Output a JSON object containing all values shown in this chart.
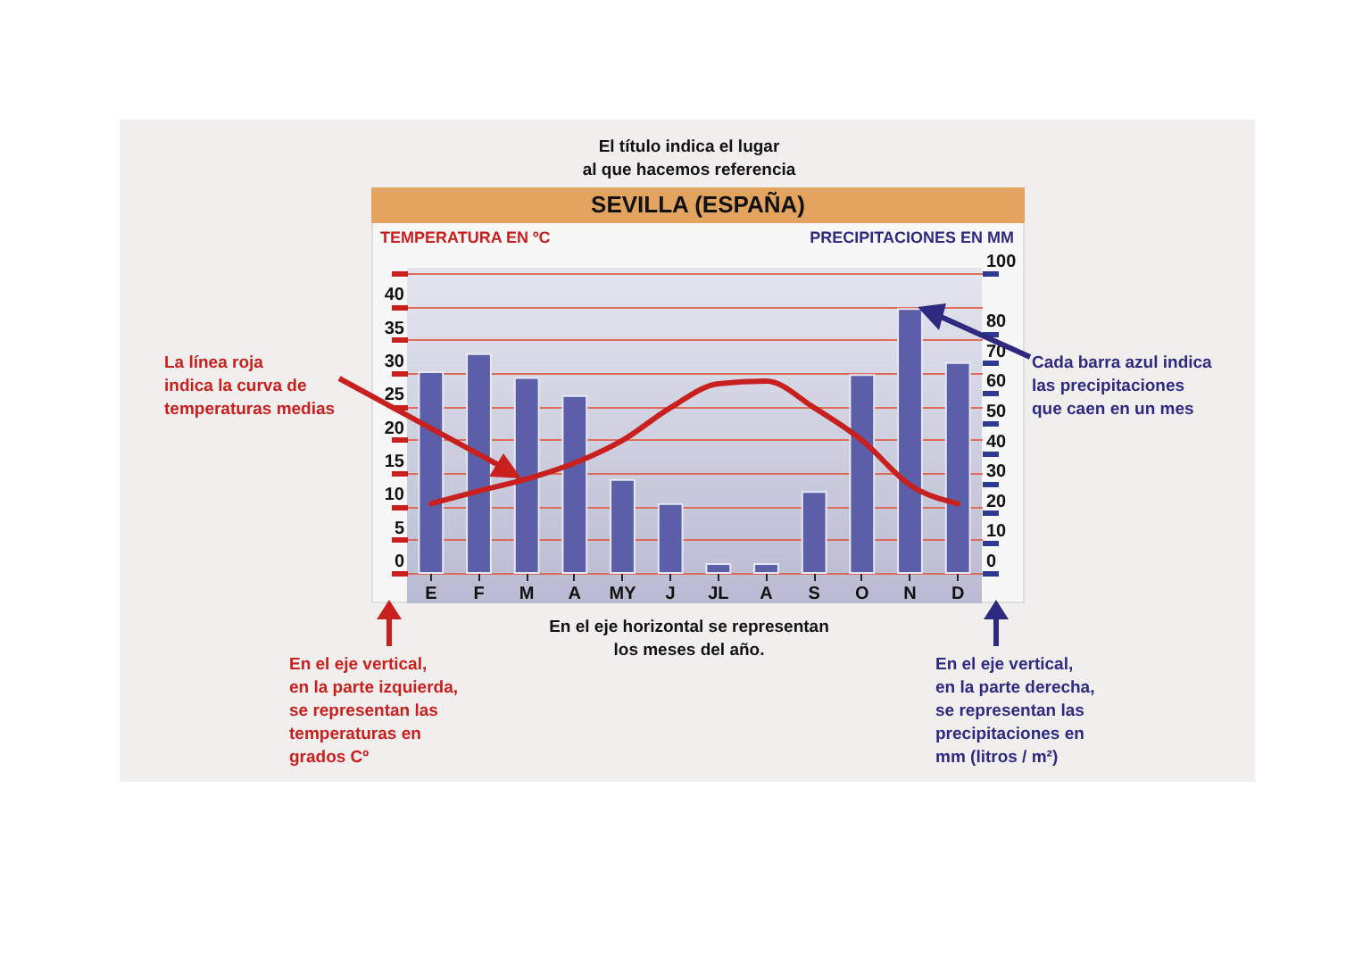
{
  "chart_data": {
    "type": "bar",
    "title": "SEVILLA (ESPAÑA)",
    "ylabel": "TEMPERATURA EN ºC",
    "y2label": "PRECIPITACIONES EN MM",
    "categories": [
      "E",
      "F",
      "M",
      "A",
      "MY",
      "J",
      "JL",
      "A",
      "S",
      "O",
      "N",
      "D"
    ],
    "series": [
      {
        "axis": "y2",
        "color": "#5a5fa8",
        "values": [
          67,
          73,
          65,
          59,
          31,
          23,
          3,
          3,
          27,
          66,
          88,
          70
        ]
      },
      {
        "type": "line",
        "axis": "y",
        "color": "#c8201e",
        "values": [
          10.4,
          12.3,
          14.1,
          16.5,
          19.9,
          24.8,
          28.4,
          28.8,
          24.8,
          19.9,
          13.2,
          10.4
        ]
      }
    ],
    "ylim": [
      0,
      45
    ],
    "yticks": [
      0,
      5,
      10,
      15,
      20,
      25,
      30,
      35,
      40,
      {
        "value": 45,
        "label": null
      }
    ],
    "y2lim": [
      0,
      100
    ],
    "y2ticks": [
      0,
      10,
      20,
      30,
      40,
      50,
      60,
      70,
      80,
      100
    ],
    "grid": "y",
    "annotations": [
      "El título indica el lugar\nal que hacemos referencia",
      "La línea roja\nindica la curva de\ntemperaturas medias",
      "Cada barra azul indica\nlas precipitaciones\nque caen en un mes",
      "En el eje horizontal se representan\nlos meses del año.",
      "En el eje vertical,\nen la parte izquierda,\nse representan las\ntemperaturas en\ngrados Cº",
      "En el eje vertical,\nen la parte derecha,\nse representan las\nprecipitaciones en\nmm (litros / m²)"
    ]
  }
}
